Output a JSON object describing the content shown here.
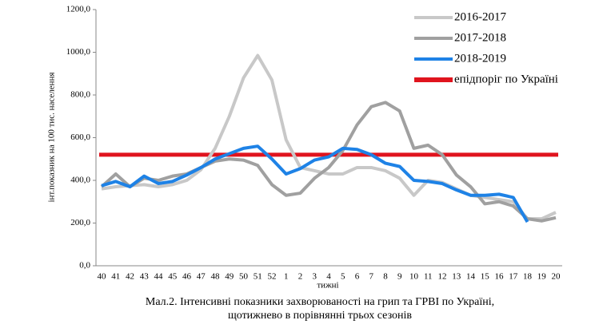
{
  "chart_data": {
    "type": "line",
    "y_label": "інт.показник на 100 тис. населення",
    "x_label": "тижні",
    "caption": [
      "Мал.2. Інтенсивні показники захворюваності на грип та ГРВІ по Україні,",
      "щотижнево в порівнянні трьох сезонів"
    ],
    "categories": [
      "40",
      "41",
      "42",
      "43",
      "44",
      "45",
      "46",
      "47",
      "48",
      "49",
      "50",
      "51",
      "52",
      "1",
      "2",
      "3",
      "4",
      "5",
      "6",
      "7",
      "8",
      "9",
      "10",
      "11",
      "12",
      "13",
      "14",
      "15",
      "16",
      "17",
      "18",
      "19",
      "20"
    ],
    "series": [
      {
        "name": "2016-2017",
        "color": "#c8c8c8",
        "values": [
          360,
          370,
          375,
          380,
          370,
          380,
          400,
          450,
          550,
          700,
          880,
          985,
          870,
          590,
          460,
          445,
          430,
          430,
          460,
          460,
          445,
          410,
          330,
          400,
          390,
          360,
          330,
          320,
          310,
          300,
          220,
          220,
          250
        ]
      },
      {
        "name": "2017-2018",
        "color": "#a0a0a0",
        "values": [
          370,
          430,
          370,
          410,
          400,
          420,
          430,
          460,
          490,
          500,
          495,
          470,
          380,
          330,
          340,
          410,
          460,
          540,
          660,
          745,
          765,
          725,
          550,
          565,
          520,
          425,
          370,
          290,
          300,
          280,
          220,
          210,
          225
        ]
      },
      {
        "name": "2018-2019",
        "color": "#1e82e6",
        "values": [
          375,
          395,
          370,
          420,
          385,
          395,
          425,
          460,
          500,
          525,
          550,
          560,
          500,
          430,
          455,
          495,
          510,
          550,
          545,
          520,
          480,
          465,
          400,
          395,
          385,
          355,
          330,
          330,
          335,
          320,
          205,
          null,
          null
        ]
      }
    ],
    "threshold": {
      "name": "епідпоріг по Україні",
      "value": 520,
      "color": "#e0141e"
    },
    "ylim": [
      0,
      1200
    ],
    "yticks": [
      {
        "value": 0,
        "label": "0,0"
      },
      {
        "value": 200,
        "label": "200,0"
      },
      {
        "value": 400,
        "label": "400,0"
      },
      {
        "value": 600,
        "label": "600,0"
      },
      {
        "value": 800,
        "label": "800,0"
      },
      {
        "value": 1000,
        "label": "1000,0"
      },
      {
        "value": 1200,
        "label": "1200,0"
      }
    ]
  }
}
